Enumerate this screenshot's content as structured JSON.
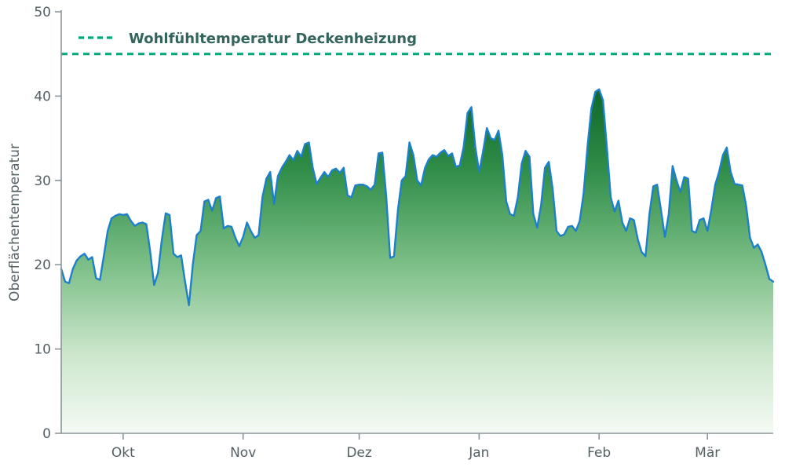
{
  "figure": {
    "ylabel": "Oberflächentemperatur",
    "legend_label": "Wohlfühltemperatur Deckenheizung"
  },
  "chart_data": {
    "type": "area",
    "title": "",
    "xlabel": "",
    "ylabel": "Oberflächentemperatur",
    "ylim": [
      0,
      50
    ],
    "grid": false,
    "legend_position": "top-left-inside",
    "y_ticks": [
      0,
      10,
      20,
      30,
      40,
      50
    ],
    "x_ticks": [
      {
        "label": "Okt",
        "day": 16
      },
      {
        "label": "Nov",
        "day": 47
      },
      {
        "label": "Dez",
        "day": 77
      },
      {
        "label": "Jan",
        "day": 108
      },
      {
        "label": "Feb",
        "day": 139
      },
      {
        "label": "Mär",
        "day": 167
      }
    ],
    "x_unit": "daily values from mid-September (index 0) to mid-March",
    "series_name": "Oberflächentemperatur Deckenheizung",
    "values": [
      19.5,
      18.0,
      17.8,
      19.5,
      20.5,
      21.0,
      21.3,
      20.6,
      20.9,
      18.4,
      18.2,
      21.0,
      24.0,
      25.5,
      25.8,
      26.0,
      25.9,
      26.0,
      25.2,
      24.6,
      24.9,
      25.0,
      24.8,
      21.5,
      17.6,
      19.0,
      23.0,
      26.1,
      25.9,
      21.3,
      20.9,
      21.1,
      18.0,
      15.2,
      20.0,
      23.5,
      24.0,
      27.5,
      27.7,
      26.4,
      27.9,
      28.1,
      24.3,
      24.6,
      24.5,
      23.2,
      22.2,
      23.3,
      25.0,
      24.0,
      23.2,
      23.5,
      28.0,
      30.2,
      31.0,
      27.2,
      30.5,
      31.5,
      32.2,
      33.0,
      32.4,
      33.5,
      32.8,
      34.3,
      34.5,
      31.5,
      29.6,
      30.3,
      31.0,
      30.4,
      31.2,
      31.4,
      30.9,
      31.5,
      28.2,
      28.0,
      29.4,
      29.5,
      29.5,
      29.3,
      28.9,
      29.5,
      33.2,
      33.3,
      28.0,
      20.8,
      21.0,
      26.5,
      30.0,
      30.5,
      34.5,
      33.0,
      30.0,
      29.4,
      31.5,
      32.5,
      33.0,
      32.8,
      33.3,
      33.6,
      32.9,
      33.2,
      31.6,
      31.8,
      34.0,
      38.0,
      38.7,
      34.0,
      31.0,
      33.4,
      36.2,
      35.0,
      34.8,
      35.9,
      33.0,
      27.5,
      26.0,
      25.8,
      28.0,
      32.0,
      33.5,
      32.8,
      26.0,
      24.4,
      27.0,
      31.5,
      32.2,
      29.0,
      24.0,
      23.4,
      23.6,
      24.5,
      24.6,
      24.0,
      25.2,
      28.5,
      34.0,
      38.5,
      40.5,
      40.8,
      39.5,
      34.0,
      28.0,
      26.3,
      27.6,
      25.0,
      24.0,
      25.5,
      25.3,
      23.0,
      21.5,
      21.0,
      26.0,
      29.3,
      29.5,
      26.5,
      23.3,
      26.0,
      31.7,
      30.0,
      28.6,
      30.4,
      30.2,
      24.0,
      23.8,
      25.3,
      25.5,
      24.0,
      26.5,
      29.5,
      31.0,
      33.0,
      33.9,
      31.0,
      29.6,
      29.5,
      29.4,
      27.0,
      23.2,
      22.0,
      22.4,
      21.5,
      20.0,
      18.3,
      18.0
    ],
    "comfort_line": {
      "label": "Wohlfühltemperatur Deckenheizung",
      "value": 45,
      "style": "dashed"
    },
    "colors": {
      "line": "#1e80c9",
      "comfort": "#00a878",
      "fill_top": "#0a6226",
      "fill_mid": "#2e8c47",
      "fill_light": "#7abe86",
      "fill_pale": "#cde7cd",
      "fill_bottom": "#f4faf4",
      "axis_text": "#546064",
      "legend_text": "#33655d",
      "spine": "#8a9599"
    }
  }
}
